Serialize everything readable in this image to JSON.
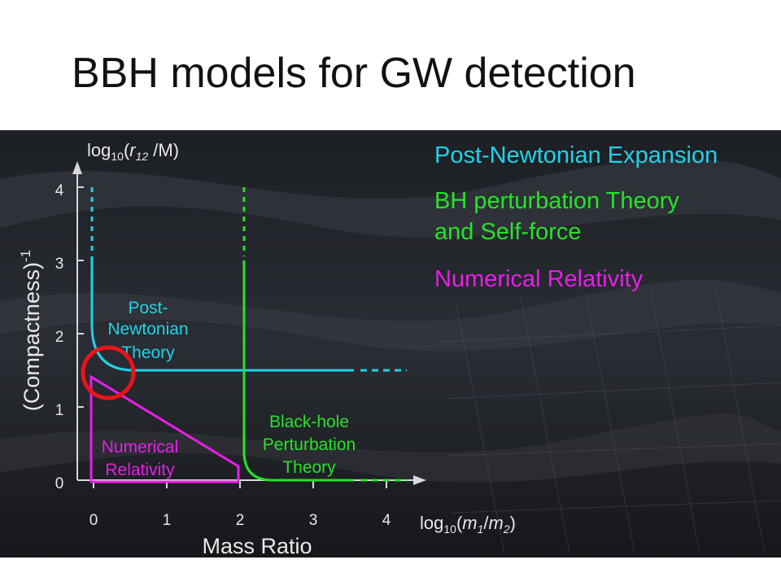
{
  "title": "BBH models for GW detection",
  "colors": {
    "post_newtonian": "#1fd3e8",
    "bh_perturbation": "#27e22a",
    "numerical_relativity": "#e81ee8",
    "highlight": "#e8141c",
    "axis": "#d8d8d8"
  },
  "axes": {
    "y_label_top": {
      "prefix": "log",
      "sub": "10",
      "open": "(",
      "var": "r",
      "var_sub": "12",
      "rest": " /M)"
    },
    "y_label_side": {
      "main": "(Compactness)",
      "sup": "-1"
    },
    "x_label_right": {
      "prefix": "log",
      "sub": "10",
      "open": "(",
      "var1": "m",
      "var1_sub": "1",
      "slash": "/",
      "var2": "m",
      "var2_sub": "2",
      "close": ")"
    },
    "x_label_bottom": "Mass Ratio",
    "y_ticks": [
      "0",
      "1",
      "2",
      "3",
      "4"
    ],
    "x_ticks": [
      "0",
      "1",
      "2",
      "3",
      "4"
    ]
  },
  "legend": {
    "post_newtonian": "Post-Newtonian Expansion",
    "bh_line1": "BH perturbation Theory",
    "bh_line2": "and Self-force",
    "numerical_relativity": "Numerical Relativity"
  },
  "regions": {
    "pn_line1": "Post-",
    "pn_line2": "Newtonian",
    "pn_line3": "Theory",
    "bh_line1": "Black-hole",
    "bh_line2": "Perturbation",
    "bh_line3": "Theory",
    "nr_line1": "Numerical",
    "nr_line2": "Relativity"
  }
}
